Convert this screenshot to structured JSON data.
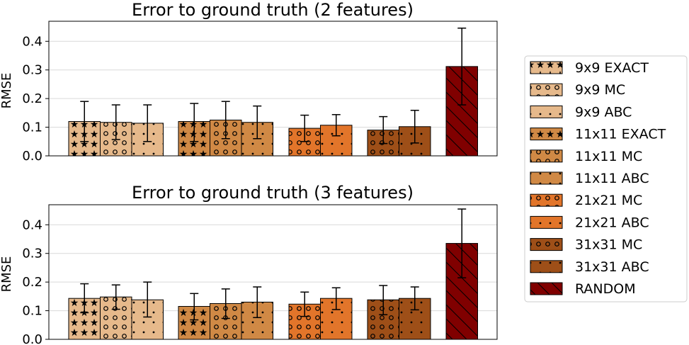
{
  "legend": {
    "entries": [
      {
        "label": "9x9 EXACT",
        "color": "#e6b98b",
        "pattern": "stars"
      },
      {
        "label": "9x9 MC",
        "color": "#e6b98b",
        "pattern": "circles"
      },
      {
        "label": "9x9 ABC",
        "color": "#e6b98b",
        "pattern": "dots"
      },
      {
        "label": "11x11 EXACT",
        "color": "#d08945",
        "pattern": "stars"
      },
      {
        "label": "11x11 MC",
        "color": "#d08945",
        "pattern": "circles"
      },
      {
        "label": "11x11 ABC",
        "color": "#d08945",
        "pattern": "dots"
      },
      {
        "label": "21x21 MC",
        "color": "#e2752a",
        "pattern": "circles"
      },
      {
        "label": "21x21 ABC",
        "color": "#e2752a",
        "pattern": "dots"
      },
      {
        "label": "31x31 MC",
        "color": "#9e4f18",
        "pattern": "circles"
      },
      {
        "label": "31x31 ABC",
        "color": "#9e4f18",
        "pattern": "dots"
      },
      {
        "label": "RANDOM",
        "color": "#800000",
        "pattern": "diag"
      }
    ]
  },
  "chart_data": [
    {
      "type": "bar",
      "title": "Error to ground truth (2 features)",
      "ylabel": "RMSE",
      "ylim": [
        0,
        0.47
      ],
      "yticks": [
        "0.0",
        "0.1",
        "0.2",
        "0.3",
        "0.4"
      ],
      "grid": true,
      "series": [
        {
          "name": "9x9 EXACT",
          "value": 0.12,
          "lo": 0.05,
          "hi": 0.19
        },
        {
          "name": "9x9 MC",
          "value": 0.117,
          "lo": 0.057,
          "hi": 0.178
        },
        {
          "name": "9x9 ABC",
          "value": 0.114,
          "lo": 0.05,
          "hi": 0.178
        },
        {
          "name": "11x11 EXACT",
          "value": 0.12,
          "lo": 0.05,
          "hi": 0.183
        },
        {
          "name": "11x11 MC",
          "value": 0.125,
          "lo": 0.06,
          "hi": 0.19
        },
        {
          "name": "11x11 ABC",
          "value": 0.117,
          "lo": 0.06,
          "hi": 0.174
        },
        {
          "name": "21x21 MC",
          "value": 0.096,
          "lo": 0.05,
          "hi": 0.142
        },
        {
          "name": "21x21 ABC",
          "value": 0.107,
          "lo": 0.07,
          "hi": 0.144
        },
        {
          "name": "31x31 MC",
          "value": 0.09,
          "lo": 0.043,
          "hi": 0.137
        },
        {
          "name": "31x31 ABC",
          "value": 0.102,
          "lo": 0.045,
          "hi": 0.159
        },
        {
          "name": "RANDOM",
          "value": 0.312,
          "lo": 0.178,
          "hi": 0.446
        }
      ]
    },
    {
      "type": "bar",
      "title": "Error to ground truth (3 features)",
      "ylabel": "RMSE",
      "ylim": [
        0,
        0.47
      ],
      "yticks": [
        "0.0",
        "0.1",
        "0.2",
        "0.3",
        "0.4"
      ],
      "grid": true,
      "series": [
        {
          "name": "9x9 EXACT",
          "value": 0.143,
          "lo": 0.093,
          "hi": 0.194
        },
        {
          "name": "9x9 MC",
          "value": 0.148,
          "lo": 0.105,
          "hi": 0.19
        },
        {
          "name": "9x9 ABC",
          "value": 0.138,
          "lo": 0.078,
          "hi": 0.2
        },
        {
          "name": "11x11 EXACT",
          "value": 0.115,
          "lo": 0.068,
          "hi": 0.16
        },
        {
          "name": "11x11 MC",
          "value": 0.125,
          "lo": 0.073,
          "hi": 0.176
        },
        {
          "name": "11x11 ABC",
          "value": 0.13,
          "lo": 0.076,
          "hi": 0.183
        },
        {
          "name": "21x21 MC",
          "value": 0.123,
          "lo": 0.08,
          "hi": 0.165
        },
        {
          "name": "21x21 ABC",
          "value": 0.143,
          "lo": 0.104,
          "hi": 0.18
        },
        {
          "name": "31x31 MC",
          "value": 0.138,
          "lo": 0.086,
          "hi": 0.188
        },
        {
          "name": "31x31 ABC",
          "value": 0.143,
          "lo": 0.103,
          "hi": 0.183
        },
        {
          "name": "RANDOM",
          "value": 0.335,
          "lo": 0.215,
          "hi": 0.455
        }
      ]
    }
  ]
}
